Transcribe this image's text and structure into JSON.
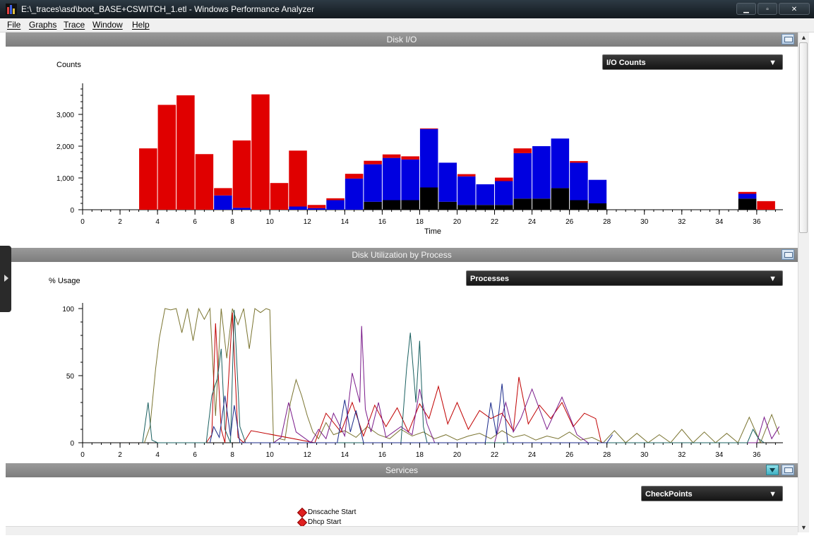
{
  "window": {
    "title": "E:\\_traces\\asd\\boot_BASE+CSWITCH_1.etl - Windows Performance Analyzer"
  },
  "menu": {
    "items": [
      "File",
      "Graphs",
      "Trace",
      "Window",
      "Help"
    ]
  },
  "panels": {
    "disk_io": {
      "title": "Disk I/O",
      "dropdown": "I/O Counts",
      "ylabel": "Counts",
      "xlabel": "Time"
    },
    "disk_util": {
      "title": "Disk Utilization by Process",
      "dropdown": "Processes",
      "ylabel": "% Usage",
      "xlabel": "Time"
    },
    "services": {
      "title": "Services",
      "dropdown": "CheckPoints",
      "checkpoints": [
        "Dnscache Start",
        "Dhcp Start"
      ]
    }
  },
  "colors": {
    "red": "#e00000",
    "blue": "#0000e0",
    "black": "#000000",
    "olive": "#7a7430",
    "darkred": "#c00000",
    "purple": "#7a1a8a",
    "teal": "#1a6060",
    "navy": "#1a2a8a"
  },
  "chart_data": [
    {
      "type": "bar",
      "title": "Disk I/O",
      "ylabel": "Counts",
      "xlabel": "Time",
      "xlim": [
        0,
        37.4
      ],
      "ylim": [
        0,
        3800
      ],
      "xticks": [
        0,
        2,
        4,
        6,
        8,
        10,
        12,
        14,
        16,
        18,
        20,
        22,
        24,
        26,
        28,
        30,
        32,
        34,
        36
      ],
      "yticks": [
        0,
        1000,
        2000,
        3000
      ],
      "ytick_labels": [
        "0",
        "1,000",
        "2,000",
        "3,000"
      ],
      "bin_width": 1,
      "bin_start": [
        3,
        4,
        5,
        6,
        7,
        8,
        9,
        10,
        11,
        12,
        13,
        14,
        15,
        16,
        17,
        18,
        19,
        20,
        21,
        22,
        23,
        24,
        25,
        26,
        27,
        35,
        36
      ],
      "series": [
        {
          "name": "black",
          "values": [
            0,
            0,
            0,
            0,
            0,
            0,
            0,
            0,
            0,
            0,
            0,
            0,
            250,
            300,
            300,
            700,
            250,
            150,
            150,
            150,
            350,
            350,
            680,
            300,
            200,
            350,
            0
          ]
        },
        {
          "name": "blue",
          "values": [
            0,
            0,
            0,
            0,
            450,
            60,
            0,
            0,
            100,
            50,
            300,
            980,
            1180,
            1330,
            1280,
            1840,
            1230,
            900,
            650,
            750,
            1430,
            1650,
            1560,
            1180,
            740,
            150,
            0
          ]
        },
        {
          "name": "red",
          "values": [
            1930,
            3300,
            3600,
            1750,
            230,
            2120,
            3630,
            840,
            1760,
            100,
            60,
            150,
            110,
            110,
            100,
            20,
            0,
            70,
            0,
            110,
            150,
            0,
            0,
            50,
            0,
            60,
            270
          ]
        }
      ]
    },
    {
      "type": "line",
      "title": "Disk Utilization by Process",
      "ylabel": "% Usage",
      "xlabel": "Time",
      "xlim": [
        0,
        37.4
      ],
      "ylim": [
        0,
        100
      ],
      "xticks": [
        0,
        2,
        4,
        6,
        8,
        10,
        12,
        14,
        16,
        18,
        20,
        22,
        24,
        26,
        28,
        30,
        32,
        34,
        36
      ],
      "yticks": [
        0,
        50,
        100
      ],
      "series": [
        {
          "name": "olive",
          "x": [
            3.3,
            3.6,
            3.9,
            4.1,
            4.4,
            4.7,
            5.0,
            5.3,
            5.6,
            5.9,
            6.2,
            6.5,
            6.8,
            7.1,
            7.4,
            7.7,
            8.0,
            8.3,
            8.6,
            8.9,
            9.2,
            9.5,
            9.8,
            10.0,
            10.2,
            10.5,
            10.8,
            11.1,
            11.4,
            11.7,
            12.0,
            12.3,
            12.6,
            13.0,
            13.4,
            14.0,
            14.6,
            15.2,
            15.8,
            16.4,
            17.0,
            17.6,
            18.2,
            18.8,
            19.4,
            20.0,
            20.6,
            21.2,
            21.8,
            22.4,
            23.0,
            23.6,
            24.2,
            24.8,
            25.4,
            26.0,
            26.6,
            27.2,
            27.8,
            28.4,
            29.0,
            29.6,
            30.2,
            30.8,
            31.4,
            32.0,
            32.6,
            33.2,
            33.8,
            34.4,
            35.0,
            35.6,
            36.2,
            36.8,
            37.2
          ],
          "y": [
            0,
            12,
            55,
            78,
            100,
            99,
            100,
            82,
            100,
            76,
            100,
            92,
            100,
            20,
            100,
            63,
            100,
            88,
            100,
            70,
            100,
            97,
            100,
            99,
            0,
            3,
            2,
            30,
            47,
            35,
            20,
            8,
            3,
            15,
            6,
            9,
            4,
            12,
            6,
            3,
            10,
            5,
            8,
            3,
            6,
            2,
            5,
            7,
            3,
            9,
            4,
            6,
            2,
            5,
            3,
            8,
            2,
            4,
            0,
            9,
            0,
            7,
            0,
            6,
            0,
            10,
            0,
            8,
            0,
            7,
            0,
            19,
            0,
            21,
            6
          ]
        },
        {
          "name": "darkred",
          "x": [
            6.6,
            6.9,
            7.1,
            7.4,
            7.6,
            8.0,
            8.3,
            8.6,
            9.0,
            12.4,
            13.0,
            13.8,
            14.4,
            15.0,
            15.6,
            16.2,
            16.8,
            17.4,
            18.0,
            18.5,
            19.0,
            19.5,
            20.0,
            20.6,
            21.2,
            21.8,
            22.4,
            23.0,
            23.3,
            23.8,
            24.4,
            25.0,
            25.6,
            26.2,
            26.8,
            27.4,
            27.7
          ],
          "y": [
            0,
            6,
            89,
            10,
            0,
            97,
            4,
            0,
            9,
            0,
            22,
            8,
            30,
            5,
            28,
            12,
            26,
            8,
            29,
            18,
            42,
            14,
            30,
            10,
            24,
            18,
            22,
            9,
            49,
            14,
            28,
            18,
            30,
            12,
            22,
            18,
            0
          ]
        },
        {
          "name": "purple",
          "x": [
            10.2,
            10.6,
            11.0,
            11.4,
            12.2,
            12.6,
            13.0,
            13.4,
            14.0,
            14.4,
            14.8,
            14.9,
            15.1,
            15.4,
            15.8,
            16.2,
            17.0,
            17.6,
            18.0,
            18.4,
            18.8,
            22.0,
            22.6,
            23.0,
            23.4,
            24.0,
            24.8,
            25.6,
            26.4,
            27.0,
            36.0,
            36.4,
            36.8,
            37.2
          ],
          "y": [
            0,
            4,
            30,
            8,
            0,
            10,
            3,
            22,
            5,
            52,
            30,
            87,
            25,
            8,
            30,
            4,
            12,
            6,
            40,
            14,
            0,
            0,
            30,
            8,
            18,
            40,
            10,
            34,
            6,
            0,
            0,
            19,
            3,
            12
          ]
        },
        {
          "name": "teal",
          "x": [
            3.2,
            3.5,
            3.7,
            4.0,
            6.6,
            6.9,
            7.2,
            7.4,
            7.6,
            7.9,
            8.1,
            8.4,
            8.7,
            17.0,
            17.3,
            17.5,
            17.8,
            18.0,
            18.2,
            18.4,
            35.5,
            35.8,
            36.1,
            36.4
          ],
          "y": [
            0,
            30,
            2,
            0,
            0,
            35,
            48,
            70,
            10,
            0,
            99,
            12,
            0,
            0,
            55,
            82,
            30,
            76,
            12,
            0,
            0,
            10,
            3,
            0
          ]
        },
        {
          "name": "navy",
          "x": [
            6.8,
            7.0,
            7.3,
            7.6,
            7.9,
            8.1,
            8.4,
            13.6,
            14.0,
            14.3,
            14.6,
            15.0,
            21.5,
            21.8,
            22.1,
            22.4,
            22.7,
            28.0,
            28.3
          ],
          "y": [
            0,
            12,
            4,
            35,
            5,
            28,
            0,
            0,
            32,
            8,
            24,
            0,
            0,
            30,
            6,
            44,
            0,
            0,
            6
          ]
        }
      ]
    }
  ]
}
